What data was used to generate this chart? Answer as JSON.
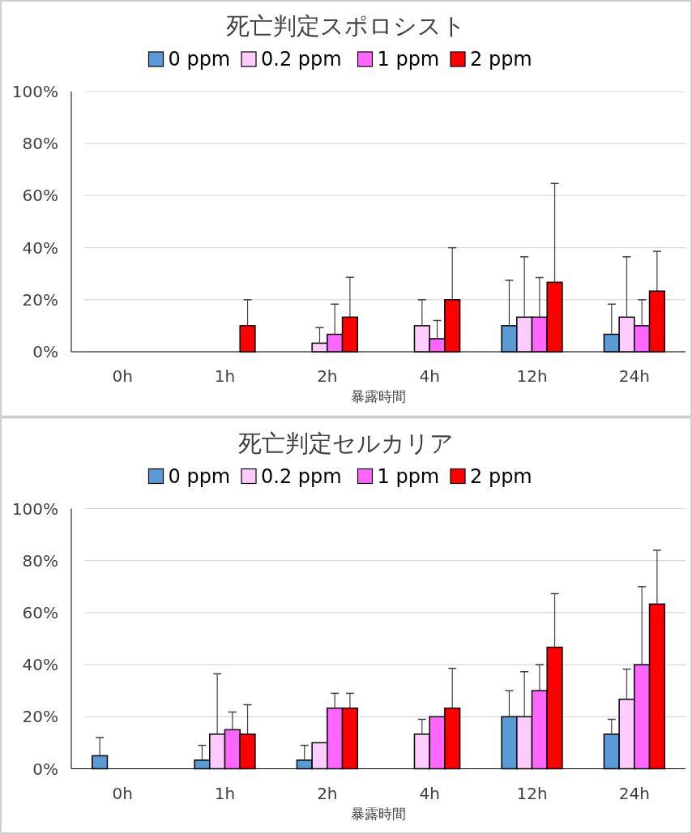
{
  "chart_data": [
    {
      "type": "bar",
      "title": "死亡判定スポロシスト",
      "xlabel": "暴露時間",
      "categories": [
        "0h",
        "1h",
        "2h",
        "4h",
        "12h",
        "24h"
      ],
      "legend": "top",
      "grid": "y",
      "ylim": [
        0,
        100
      ],
      "yticks": [
        {
          "value": 0,
          "label": "0%"
        },
        {
          "value": 20,
          "label": "20%"
        },
        {
          "value": 40,
          "label": "40%"
        },
        {
          "value": 60,
          "label": "60%"
        },
        {
          "value": 80,
          "label": "80%"
        },
        {
          "value": 100,
          "label": "100%"
        }
      ],
      "series": [
        {
          "name": "0 ppm",
          "color": "#5b9bd5",
          "values": [
            0,
            0,
            0,
            0,
            10,
            6.7
          ],
          "errors": [
            null,
            null,
            null,
            null,
            [
              10,
              27.5
            ],
            [
              6.7,
              18.3
            ]
          ]
        },
        {
          "name": "0.2 ppm",
          "color": "#ffccff",
          "values": [
            0,
            0,
            3.3,
            10,
            13.3,
            13.3
          ],
          "errors": [
            null,
            null,
            [
              3.3,
              9.3
            ],
            [
              10,
              20
            ],
            [
              13.3,
              36.5
            ],
            [
              13.3,
              36.5
            ]
          ]
        },
        {
          "name": "1 ppm",
          "color": "#ff66ff",
          "values": [
            0,
            0,
            6.7,
            5,
            13.3,
            10
          ],
          "errors": [
            null,
            null,
            [
              6.7,
              18.3
            ],
            [
              5,
              12
            ],
            [
              13.3,
              28.5
            ],
            [
              10,
              20
            ]
          ]
        },
        {
          "name": "2 ppm",
          "color": "#ff0000",
          "values": [
            0,
            10,
            13.3,
            20,
            26.7,
            23.3
          ],
          "errors": [
            null,
            [
              10,
              20
            ],
            [
              13.3,
              28.6
            ],
            [
              20,
              40
            ],
            [
              26.7,
              64.7
            ],
            [
              23.3,
              38.6
            ]
          ]
        }
      ]
    },
    {
      "type": "bar",
      "title": "死亡判定セルカリア",
      "xlabel": "暴露時間",
      "categories": [
        "0h",
        "1h",
        "2h",
        "4h",
        "12h",
        "24h"
      ],
      "legend": "top",
      "grid": "y",
      "ylim": [
        0,
        100
      ],
      "yticks": [
        {
          "value": 0,
          "label": "0%"
        },
        {
          "value": 20,
          "label": "20%"
        },
        {
          "value": 40,
          "label": "40%"
        },
        {
          "value": 60,
          "label": "60%"
        },
        {
          "value": 80,
          "label": "80%"
        },
        {
          "value": 100,
          "label": "100%"
        }
      ],
      "series": [
        {
          "name": "0 ppm",
          "color": "#5b9bd5",
          "values": [
            5,
            3.3,
            3.3,
            0,
            20,
            13.3
          ],
          "errors": [
            [
              5,
              12
            ],
            [
              3.3,
              9
            ],
            [
              3.3,
              9
            ],
            null,
            [
              20,
              30
            ],
            [
              13.3,
              19
            ]
          ]
        },
        {
          "name": "0.2 ppm",
          "color": "#ffccff",
          "values": [
            0,
            13.3,
            10,
            13.3,
            20,
            26.7
          ],
          "errors": [
            null,
            [
              13.3,
              36.5
            ],
            null,
            [
              13.3,
              19
            ],
            [
              20,
              37.3
            ],
            [
              26.7,
              38.3
            ]
          ]
        },
        {
          "name": "1 ppm",
          "color": "#ff66ff",
          "values": [
            0,
            15,
            23.3,
            20,
            30,
            40
          ],
          "errors": [
            null,
            [
              15,
              21.8
            ],
            [
              23.3,
              29
            ],
            null,
            [
              30,
              40
            ],
            [
              40,
              70
            ]
          ]
        },
        {
          "name": "2 ppm",
          "color": "#ff0000",
          "values": [
            0,
            13.3,
            23.3,
            23.3,
            46.7,
            63.3
          ],
          "errors": [
            null,
            [
              13.3,
              24.6
            ],
            [
              23.3,
              29
            ],
            [
              23.3,
              38.6
            ],
            [
              46.7,
              67.3
            ],
            [
              63.3,
              84
            ]
          ]
        }
      ]
    }
  ]
}
